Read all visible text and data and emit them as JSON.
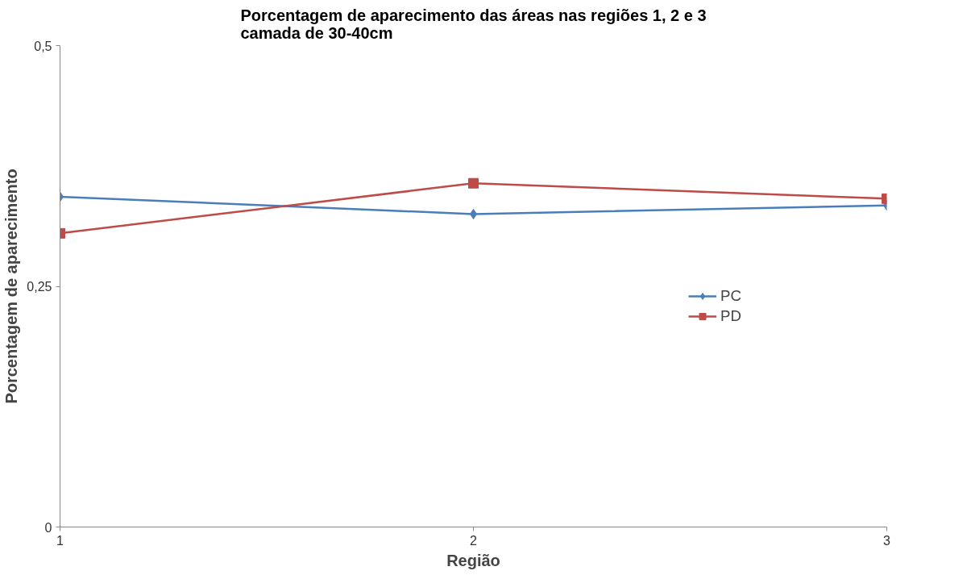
{
  "chart_data": {
    "type": "line",
    "title": "Porcentagem de aparecimento das áreas nas regiões 1, 2 e 3\ncamada de 30-40cm",
    "xlabel": "Região",
    "ylabel": "Porcentagem de aparecimento",
    "x": [
      1,
      2,
      3
    ],
    "xlim": [
      1,
      3
    ],
    "xticks": [
      1,
      2,
      3
    ],
    "ylim": [
      0,
      0.5
    ],
    "yticks": [
      {
        "value": 0,
        "label": "0"
      },
      {
        "value": 0.25,
        "label": "0,25"
      },
      {
        "value": 0.5,
        "label": "0,5"
      }
    ],
    "series": [
      {
        "name": "PC",
        "color": "#4a7ebb",
        "marker": "diamond",
        "values": [
          0.343,
          0.325,
          0.334
        ]
      },
      {
        "name": "PD",
        "color": "#be4b48",
        "marker": "square",
        "values": [
          0.305,
          0.357,
          0.341
        ]
      }
    ],
    "grid": false,
    "legend": "right"
  }
}
